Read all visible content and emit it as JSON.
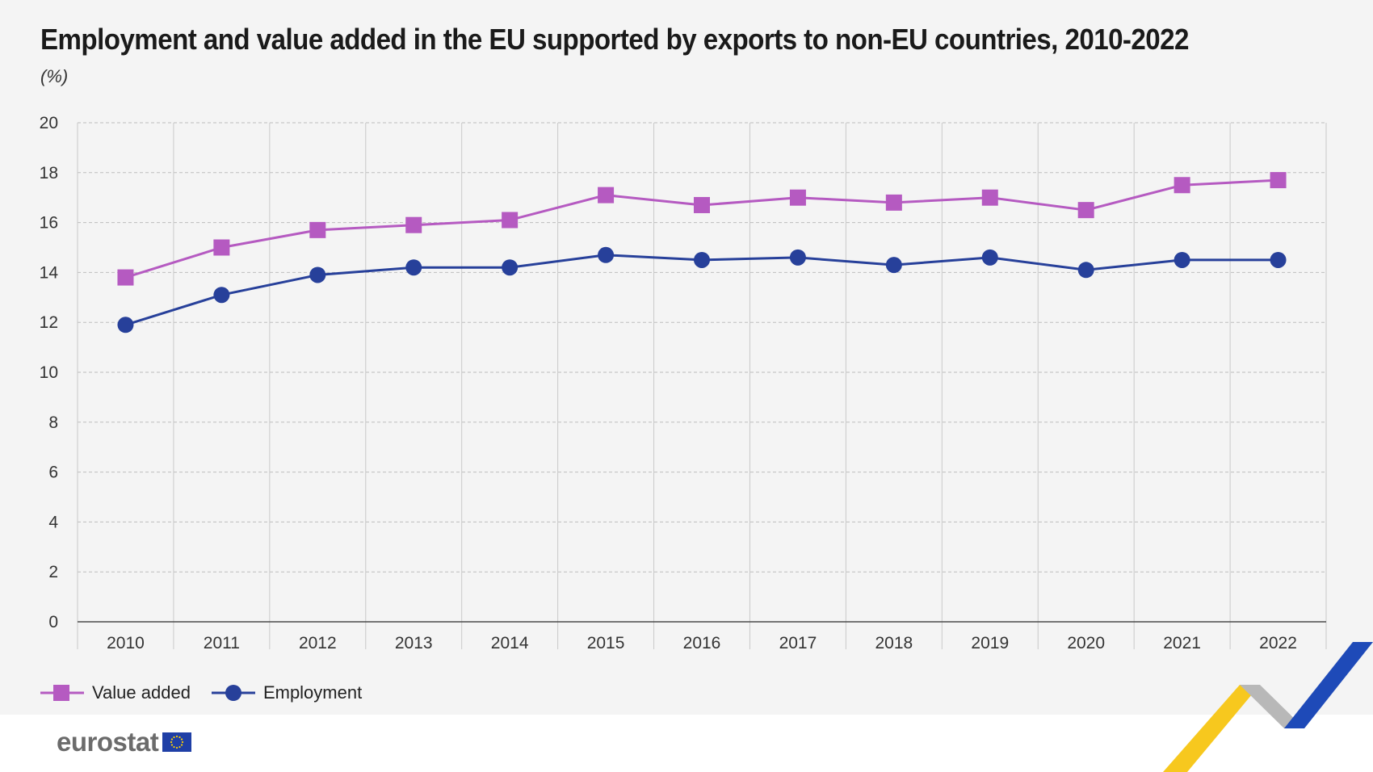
{
  "title": "Employment and value added in the EU supported by exports to non-EU countries, 2010-2022",
  "unit_label": "(%)",
  "brand": "eurostat",
  "colors": {
    "value_added": "#b55ac1",
    "employment": "#27409a",
    "panel_background": "#f4f4f4",
    "grid": "#bdbdbd"
  },
  "chart_data": {
    "type": "line",
    "x": [
      "2010",
      "2011",
      "2012",
      "2013",
      "2014",
      "2015",
      "2016",
      "2017",
      "2018",
      "2019",
      "2020",
      "2021",
      "2022"
    ],
    "series": [
      {
        "name": "Value added",
        "marker": "square",
        "values": [
          13.8,
          15.0,
          15.7,
          15.9,
          16.1,
          17.1,
          16.7,
          17.0,
          16.8,
          17.0,
          16.5,
          17.5,
          17.7
        ]
      },
      {
        "name": "Employment",
        "marker": "circle",
        "values": [
          11.9,
          13.1,
          13.9,
          14.2,
          14.2,
          14.7,
          14.5,
          14.6,
          14.3,
          14.6,
          14.1,
          14.5,
          14.5
        ]
      }
    ],
    "yticks": [
      "0",
      "2",
      "4",
      "6",
      "8",
      "10",
      "12",
      "14",
      "16",
      "18",
      "20"
    ],
    "ylim": [
      0,
      20
    ],
    "grid": true,
    "legend_position": "bottom-left"
  }
}
